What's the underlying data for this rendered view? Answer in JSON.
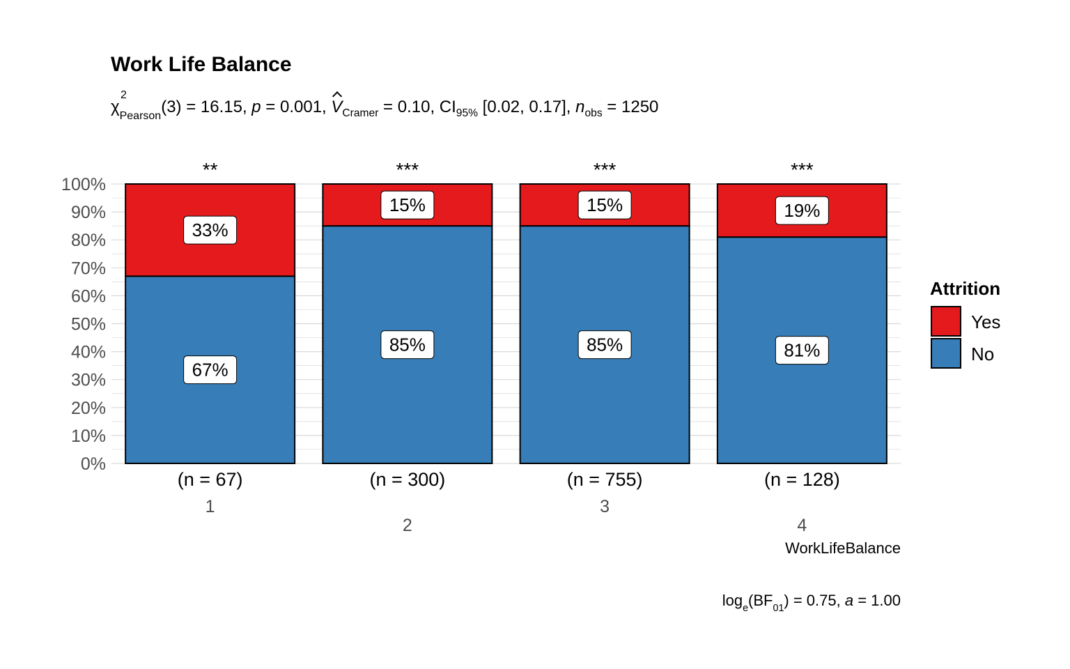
{
  "title": "Work Life Balance",
  "subtitle": {
    "chi": "χ",
    "chi_sup": "2",
    "chi_sub": "Pearson",
    "df_stat": "(3) = 16.15, ",
    "p_sym": "p",
    "p_val": " = 0.001, ",
    "v_sym": "V",
    "v_sub": "Cramer",
    "v_val": " = 0.10, CI",
    "ci_sub": "95%",
    "ci_val": " [0.02, 0.17], ",
    "n_sym": "n",
    "n_sub": "obs",
    "n_val": " = 1250"
  },
  "caption": {
    "log": "log",
    "log_sub": "e",
    "bf": "(BF",
    "bf_sub": "01",
    "rest": ") = 0.75, ",
    "a_sym": "a",
    "a_val": " = 1.00"
  },
  "chart_data": {
    "type": "bar",
    "stacked": "percent",
    "categories": [
      "1",
      "2",
      "3",
      "4"
    ],
    "counts": [
      "(n = 67)",
      "(n = 300)",
      "(n = 755)",
      "(n = 128)"
    ],
    "significance": [
      "**",
      "***",
      "***",
      "***"
    ],
    "series": [
      {
        "name": "No",
        "color": "#377EB8",
        "values": [
          67,
          85,
          85,
          81
        ],
        "labels": [
          "67%",
          "85%",
          "85%",
          "81%"
        ]
      },
      {
        "name": "Yes",
        "color": "#E41A1C",
        "values": [
          33,
          15,
          15,
          19
        ],
        "labels": [
          "33%",
          "15%",
          "15%",
          "19%"
        ]
      }
    ],
    "xlabel": "WorkLifeBalance",
    "ylabel": "",
    "yticks": [
      "0%",
      "10%",
      "20%",
      "30%",
      "40%",
      "50%",
      "60%",
      "70%",
      "80%",
      "90%",
      "100%"
    ],
    "ylim": [
      0,
      100
    ],
    "legend_title": "Attrition",
    "legend_entries": [
      {
        "label": "Yes",
        "color": "#E41A1C"
      },
      {
        "label": "No",
        "color": "#377EB8"
      }
    ],
    "legend_position": "right",
    "grid": true
  }
}
